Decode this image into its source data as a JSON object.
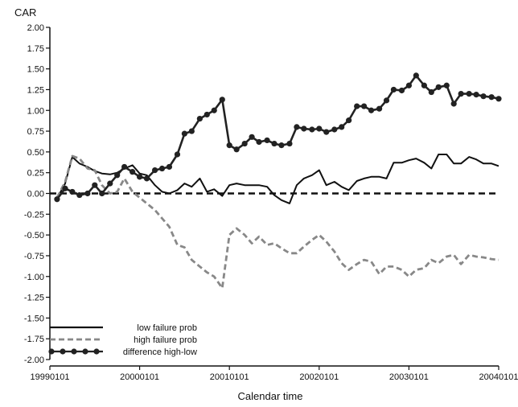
{
  "chart_data": {
    "type": "line",
    "ylabel": "CAR",
    "xlabel": "Calendar time",
    "ylim": [
      -2.0,
      2.0
    ],
    "yticks": [
      -2.0,
      -1.75,
      -1.5,
      -1.25,
      -1.0,
      -0.75,
      -0.5,
      -0.25,
      0.0,
      0.25,
      0.5,
      0.75,
      1.0,
      1.25,
      1.5,
      1.75,
      2.0
    ],
    "ytick_labels": [
      "-2.00",
      "-1.75",
      "-1.50",
      "-1.25",
      "-1.00",
      "-0.75",
      "-0.50",
      "-0.25",
      "0.00",
      "0.25",
      "0.50",
      "0.75",
      "1.00",
      "1.25",
      "1.50",
      "1.75",
      "2.00"
    ],
    "xlim": [
      1999.0,
      2004.0
    ],
    "xticks": [
      1999.0,
      2000.0,
      2001.0,
      2002.0,
      2003.0,
      2004.0
    ],
    "xtick_labels": [
      "19990101",
      "20000101",
      "20010101",
      "20020101",
      "20030101",
      "20040101"
    ],
    "zero_line": 0.0,
    "legend_position": "bottom-left",
    "series": [
      {
        "name": "low failure prob",
        "style": "solid",
        "color": "#111111",
        "x": [
          1999.08,
          1999.17,
          1999.25,
          1999.33,
          1999.42,
          1999.5,
          1999.58,
          1999.67,
          1999.75,
          1999.83,
          1999.92,
          2000.0,
          2000.08,
          2000.17,
          2000.25,
          2000.33,
          2000.42,
          2000.5,
          2000.58,
          2000.67,
          2000.75,
          2000.83,
          2000.92,
          2001.0,
          2001.08,
          2001.17,
          2001.25,
          2001.33,
          2001.42,
          2001.5,
          2001.58,
          2001.67,
          2001.75,
          2001.83,
          2001.92,
          2002.0,
          2002.08,
          2002.17,
          2002.25,
          2002.33,
          2002.42,
          2002.5,
          2002.58,
          2002.67,
          2002.75,
          2002.83,
          2002.92,
          2003.0,
          2003.08,
          2003.17,
          2003.25,
          2003.33,
          2003.42,
          2003.5,
          2003.58,
          2003.67,
          2003.75,
          2003.83,
          2003.92,
          2004.0
        ],
        "values": [
          -0.06,
          0.12,
          0.44,
          0.36,
          0.32,
          0.27,
          0.24,
          0.23,
          0.25,
          0.3,
          0.34,
          0.24,
          0.22,
          0.1,
          0.02,
          0.0,
          0.04,
          0.12,
          0.08,
          0.18,
          0.02,
          0.05,
          -0.03,
          0.1,
          0.12,
          0.1,
          0.1,
          0.1,
          0.08,
          -0.02,
          -0.08,
          -0.12,
          0.1,
          0.18,
          0.22,
          0.28,
          0.1,
          0.14,
          0.08,
          0.04,
          0.15,
          0.18,
          0.2,
          0.2,
          0.18,
          0.37,
          0.37,
          0.4,
          0.42,
          0.37,
          0.3,
          0.47,
          0.47,
          0.36,
          0.36,
          0.44,
          0.41,
          0.36,
          0.36,
          0.33
        ]
      },
      {
        "name": "high failure prob",
        "style": "dashed",
        "color": "#888888",
        "x": [
          1999.08,
          1999.17,
          1999.25,
          1999.33,
          1999.42,
          1999.5,
          1999.58,
          1999.67,
          1999.75,
          1999.83,
          1999.92,
          2000.0,
          2000.08,
          2000.17,
          2000.25,
          2000.33,
          2000.42,
          2000.5,
          2000.58,
          2000.67,
          2000.75,
          2000.83,
          2000.92,
          2001.0,
          2001.08,
          2001.17,
          2001.25,
          2001.33,
          2001.42,
          2001.5,
          2001.58,
          2001.67,
          2001.75,
          2001.83,
          2001.92,
          2002.0,
          2002.08,
          2002.17,
          2002.25,
          2002.33,
          2002.42,
          2002.5,
          2002.58,
          2002.67,
          2002.75,
          2002.83,
          2002.92,
          2003.0,
          2003.08,
          2003.17,
          2003.25,
          2003.33,
          2003.42,
          2003.5,
          2003.58,
          2003.67,
          2003.75,
          2003.83,
          2003.92,
          2004.0
        ],
        "values": [
          -0.05,
          0.14,
          0.45,
          0.42,
          0.3,
          0.28,
          0.1,
          0.0,
          0.02,
          0.18,
          0.02,
          -0.05,
          -0.12,
          -0.2,
          -0.3,
          -0.4,
          -0.62,
          -0.65,
          -0.8,
          -0.88,
          -0.95,
          -1.0,
          -1.14,
          -0.5,
          -0.42,
          -0.5,
          -0.6,
          -0.52,
          -0.62,
          -0.6,
          -0.66,
          -0.72,
          -0.72,
          -0.64,
          -0.56,
          -0.5,
          -0.58,
          -0.7,
          -0.84,
          -0.92,
          -0.85,
          -0.8,
          -0.82,
          -0.97,
          -0.88,
          -0.88,
          -0.92,
          -1.0,
          -0.92,
          -0.9,
          -0.8,
          -0.84,
          -0.76,
          -0.74,
          -0.85,
          -0.74,
          -0.76,
          -0.77,
          -0.79,
          -0.8
        ]
      },
      {
        "name": "difference high-low",
        "style": "solid-markers",
        "color": "#222222",
        "x": [
          1999.08,
          1999.17,
          1999.25,
          1999.33,
          1999.42,
          1999.5,
          1999.58,
          1999.67,
          1999.75,
          1999.83,
          1999.92,
          2000.0,
          2000.08,
          2000.17,
          2000.25,
          2000.33,
          2000.42,
          2000.5,
          2000.58,
          2000.67,
          2000.75,
          2000.83,
          2000.92,
          2001.0,
          2001.08,
          2001.17,
          2001.25,
          2001.33,
          2001.42,
          2001.5,
          2001.58,
          2001.67,
          2001.75,
          2001.83,
          2001.92,
          2002.0,
          2002.08,
          2002.17,
          2002.25,
          2002.33,
          2002.42,
          2002.5,
          2002.58,
          2002.67,
          2002.75,
          2002.83,
          2002.92,
          2003.0,
          2003.08,
          2003.17,
          2003.25,
          2003.33,
          2003.42,
          2003.5,
          2003.58,
          2003.67,
          2003.75,
          2003.83,
          2003.92,
          2004.0
        ],
        "values": [
          -0.07,
          0.06,
          0.02,
          -0.02,
          0.0,
          0.1,
          0.0,
          0.12,
          0.22,
          0.32,
          0.26,
          0.2,
          0.18,
          0.28,
          0.3,
          0.32,
          0.47,
          0.72,
          0.75,
          0.9,
          0.95,
          1.0,
          1.13,
          0.58,
          0.53,
          0.6,
          0.68,
          0.62,
          0.64,
          0.6,
          0.58,
          0.6,
          0.8,
          0.78,
          0.77,
          0.78,
          0.74,
          0.77,
          0.8,
          0.88,
          1.05,
          1.05,
          1.0,
          1.02,
          1.12,
          1.25,
          1.24,
          1.3,
          1.42,
          1.3,
          1.22,
          1.28,
          1.3,
          1.08,
          1.2,
          1.2,
          1.19,
          1.17,
          1.16,
          1.14
        ]
      }
    ]
  }
}
